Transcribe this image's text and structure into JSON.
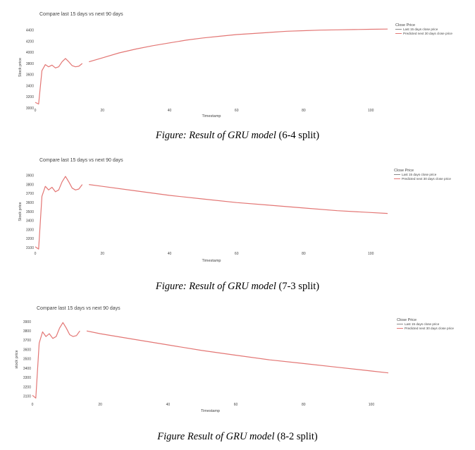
{
  "chart_data": [
    {
      "type": "line",
      "title": "Compare last 15 days vs next 90 days",
      "xlabel": "Timestamp",
      "ylabel": "Stock price",
      "xlim": [
        0,
        105
      ],
      "ylim": [
        3000,
        4460
      ],
      "xticks": [
        0,
        20,
        40,
        60,
        80,
        100
      ],
      "yticks": [
        3000,
        3200,
        3400,
        3600,
        3800,
        4000,
        4200,
        4400
      ],
      "grid": false,
      "legend": {
        "title": "Close Price",
        "position": "top-right",
        "entries": [
          "Last 15 days close price",
          "Predicted next 30 days close price"
        ]
      },
      "series": [
        {
          "name": "Last 15 days close price",
          "color": "#e37674",
          "x": [
            0,
            1,
            2,
            3,
            4,
            5,
            6,
            7,
            8,
            9,
            10,
            11,
            12,
            13,
            14
          ],
          "y": [
            3100,
            3070,
            3670,
            3780,
            3740,
            3770,
            3720,
            3740,
            3830,
            3890,
            3830,
            3760,
            3740,
            3750,
            3800
          ]
        },
        {
          "name": "Predicted next 30 days close price",
          "color": "#e37674",
          "x": [
            16,
            20,
            25,
            30,
            35,
            40,
            45,
            50,
            55,
            60,
            65,
            70,
            75,
            80,
            85,
            90,
            95,
            100,
            105
          ],
          "y": [
            3830,
            3900,
            3990,
            4060,
            4120,
            4170,
            4220,
            4260,
            4290,
            4320,
            4340,
            4360,
            4380,
            4390,
            4400,
            4405,
            4410,
            4415,
            4420
          ]
        }
      ]
    },
    {
      "type": "line",
      "title": "Compare last 15 days vs next 90 days",
      "xlabel": "Timestamp",
      "ylabel": "Stock price",
      "xlim": [
        0,
        105
      ],
      "ylim": [
        3070,
        3930
      ],
      "xticks": [
        0,
        20,
        40,
        60,
        80,
        100
      ],
      "yticks": [
        3100,
        3200,
        3300,
        3400,
        3500,
        3600,
        3700,
        3800,
        3900
      ],
      "grid": false,
      "legend": {
        "title": "Close Price",
        "position": "top-right",
        "entries": [
          "Last 15 days close price",
          "Predicted next 30 days close price"
        ]
      },
      "series": [
        {
          "name": "Last 15 days close price",
          "color": "#e37674",
          "x": [
            0,
            1,
            2,
            3,
            4,
            5,
            6,
            7,
            8,
            9,
            10,
            11,
            12,
            13,
            14
          ],
          "y": [
            3110,
            3085,
            3670,
            3780,
            3740,
            3770,
            3720,
            3740,
            3830,
            3890,
            3830,
            3760,
            3740,
            3750,
            3800
          ]
        },
        {
          "name": "Predicted next 30 days close price",
          "color": "#e37674",
          "x": [
            16,
            20,
            30,
            40,
            50,
            60,
            70,
            80,
            90,
            100,
            105
          ],
          "y": [
            3800,
            3780,
            3730,
            3680,
            3640,
            3600,
            3570,
            3540,
            3510,
            3490,
            3480
          ]
        }
      ]
    },
    {
      "type": "line",
      "title": "Compare last 15 days vs next 90 days",
      "xlabel": "Timestamp",
      "ylabel": "stock price",
      "xlim": [
        0,
        105
      ],
      "ylim": [
        3060,
        3930
      ],
      "xticks": [
        0,
        20,
        40,
        60,
        80,
        100
      ],
      "yticks": [
        3100,
        3200,
        3300,
        3400,
        3500,
        3600,
        3700,
        3800,
        3900
      ],
      "grid": false,
      "legend": {
        "title": "Close Price",
        "position": "top-right",
        "entries": [
          "Last 15 days close price",
          "Predicted next 30 days close price"
        ]
      },
      "series": [
        {
          "name": "Last 15 days close price",
          "color": "#e37674",
          "x": [
            0,
            1,
            2,
            3,
            4,
            5,
            6,
            7,
            8,
            9,
            10,
            11,
            12,
            13,
            14
          ],
          "y": [
            3110,
            3080,
            3670,
            3790,
            3740,
            3770,
            3720,
            3740,
            3830,
            3890,
            3830,
            3760,
            3740,
            3750,
            3800
          ]
        },
        {
          "name": "Predicted next 30 days close price",
          "color": "#e37674",
          "x": [
            16,
            20,
            30,
            40,
            50,
            60,
            70,
            80,
            90,
            100,
            105
          ],
          "y": [
            3800,
            3770,
            3710,
            3650,
            3590,
            3540,
            3490,
            3450,
            3410,
            3370,
            3350
          ]
        }
      ]
    }
  ],
  "captions": [
    {
      "prefix": "Figure: Result of GRU model",
      "suffix": " (6-4 split)"
    },
    {
      "prefix": "Figure: Result of GRU model",
      "suffix": " (7-3 split)"
    },
    {
      "prefix": "Figure Result of GRU model",
      "suffix": " (8-2 split)"
    }
  ]
}
